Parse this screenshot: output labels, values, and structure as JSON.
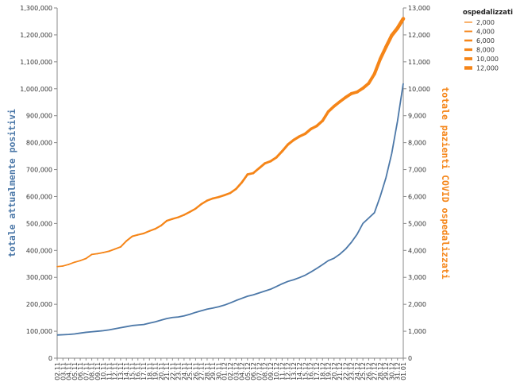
{
  "chart_data": {
    "type": "line",
    "x": [
      "02.11",
      "03.11",
      "04.11",
      "05.11",
      "06.11",
      "07.11",
      "08.11",
      "09.11",
      "10.11",
      "11.11",
      "12.11",
      "13.11",
      "14.11",
      "15.11",
      "16.11",
      "17.11",
      "18.11",
      "19.11",
      "20.11",
      "21.11",
      "22.11",
      "23.11",
      "24.11",
      "25.11",
      "26.11",
      "27.11",
      "28.11",
      "29.11",
      "30.11",
      "01.12",
      "02.12",
      "03.12",
      "04.12",
      "05.12",
      "06.12",
      "07.12",
      "08.12",
      "09.12",
      "10.12",
      "11.12",
      "12.12",
      "13.12",
      "14.12",
      "15.12",
      "16.12",
      "17.12",
      "18.12",
      "19.12",
      "20.12",
      "21.12",
      "22.12",
      "23.12",
      "24.12",
      "25.12",
      "26.12",
      "27.12",
      "28.12",
      "29.12",
      "30.12",
      "31.12",
      "01.01"
    ],
    "series": [
      {
        "axis": "left",
        "color": "#4c78a8",
        "values": [
          86000,
          87000,
          88000,
          90000,
          93000,
          96000,
          98000,
          100000,
          102000,
          105000,
          109000,
          113000,
          117000,
          121000,
          123000,
          125000,
          130000,
          135000,
          141000,
          147000,
          151000,
          153000,
          157000,
          163000,
          170000,
          176000,
          182000,
          186000,
          191000,
          197000,
          205000,
          214000,
          222000,
          230000,
          235000,
          242000,
          249000,
          256000,
          266000,
          276000,
          285000,
          291000,
          299000,
          308000,
          320000,
          333000,
          347000,
          362000,
          371000,
          386000,
          405000,
          430000,
          460000,
          500000,
          520000,
          540000,
          600000,
          670000,
          760000,
          880000,
          1020000
        ]
      },
      {
        "axis": "right",
        "color": "#f58518",
        "values": [
          3400,
          3420,
          3480,
          3560,
          3620,
          3700,
          3850,
          3880,
          3920,
          3970,
          4050,
          4130,
          4350,
          4520,
          4580,
          4630,
          4720,
          4800,
          4920,
          5100,
          5170,
          5230,
          5320,
          5430,
          5550,
          5720,
          5850,
          5930,
          5980,
          6050,
          6130,
          6280,
          6520,
          6820,
          6870,
          7050,
          7230,
          7310,
          7450,
          7680,
          7930,
          8100,
          8230,
          8330,
          8510,
          8620,
          8810,
          9150,
          9350,
          9520,
          9680,
          9820,
          9880,
          10020,
          10200,
          10550,
          11100,
          11550,
          11980,
          12250,
          12600
        ]
      }
    ],
    "y_left": {
      "label": "totale attualmente positivi",
      "ylim": [
        0,
        1300000
      ],
      "ticks": [
        "0",
        "100,000",
        "200,000",
        "300,000",
        "400,000",
        "500,000",
        "600,000",
        "700,000",
        "800,000",
        "900,000",
        "1,000,000",
        "1,100,000",
        "1,200,000",
        "1,300,000"
      ]
    },
    "y_right": {
      "label": "totale pazienti COVID ospedalizzati",
      "ylim": [
        0,
        13000
      ],
      "ticks": [
        "0",
        "1,000",
        "2,000",
        "3,000",
        "4,000",
        "5,000",
        "6,000",
        "7,000",
        "8,000",
        "9,000",
        "10,000",
        "11,000",
        "12,000",
        "13,000"
      ]
    },
    "legend": {
      "title": "ospedalizzati",
      "position": "top-right",
      "items": [
        "2,000",
        "4,000",
        "6,000",
        "8,000",
        "10,000",
        "12,000"
      ],
      "item_values": [
        2000,
        4000,
        6000,
        8000,
        10000,
        12000
      ]
    },
    "grid": false,
    "colors": {
      "left": "#4c78a8",
      "right": "#f58518",
      "axis": "#888888"
    }
  }
}
